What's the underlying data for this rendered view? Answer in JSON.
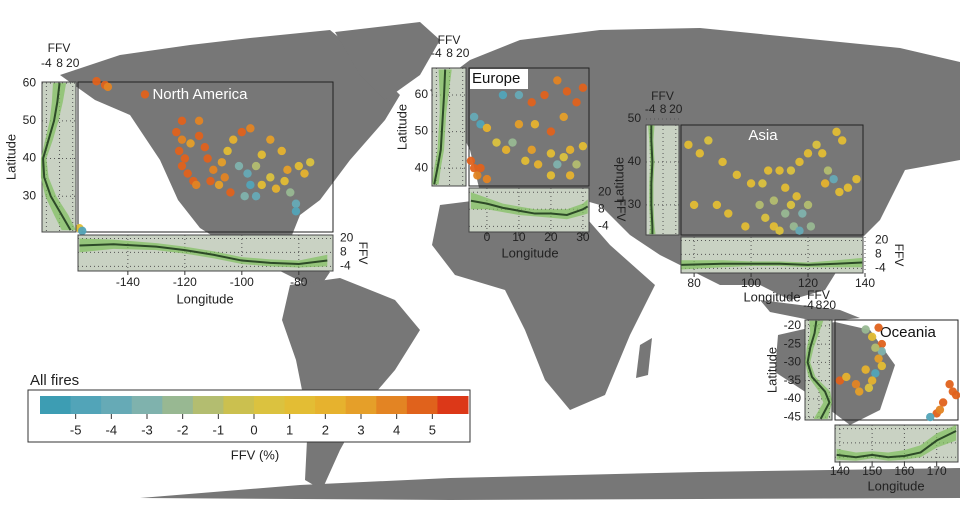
{
  "legend": {
    "title": "All fires",
    "label": "FFV (%)",
    "ticks": [
      -5,
      -4,
      -3,
      -2,
      -1,
      0,
      1,
      2,
      3,
      4,
      5
    ],
    "range": [
      -6,
      6
    ],
    "colors": [
      "#3d9db3",
      "#52a4b8",
      "#66aab6",
      "#7fb2ad",
      "#98b892",
      "#b3bd70",
      "#cbc04f",
      "#dbc23f",
      "#e3bd34",
      "#e6b22e",
      "#e59f29",
      "#e38423",
      "#e0621c",
      "#dc3818"
    ]
  },
  "regions": [
    {
      "name": "North America",
      "xlabel": "Longitude",
      "ylabel": "Latitude",
      "xlim": [
        -157.5,
        -68
      ],
      "ylim": [
        20.5,
        60.3
      ],
      "xticks": [
        -140,
        -120,
        -100,
        -80
      ],
      "yticks": [
        30,
        40,
        50,
        60
      ],
      "ffv_label": "FFV",
      "ffv_lim": [
        -8,
        23
      ],
      "ffv_ticks": [
        -4,
        8,
        20
      ],
      "points": {
        "lon": [
          -151,
          -148,
          -147,
          -134,
          -123,
          -121,
          -122,
          -120,
          -121,
          -119,
          -117,
          -116,
          -118,
          -115,
          -113,
          -112,
          -110,
          -111,
          -108,
          -106,
          -107,
          -105,
          -103,
          -100,
          -97,
          -101,
          -98,
          -97,
          -99,
          -95,
          -93,
          -90,
          -88,
          -85,
          -83,
          -81,
          -81,
          -84,
          -80,
          -78,
          -76,
          -90,
          -86,
          -93,
          -95,
          -104,
          -121,
          -115,
          -157,
          -156
        ],
        "lat": [
          60.5,
          59.5,
          59,
          57,
          47,
          45,
          42,
          40,
          38,
          36,
          34,
          33,
          44,
          46,
          43,
          40,
          37,
          34,
          33,
          35,
          39,
          42,
          45,
          47,
          48,
          38,
          36,
          33,
          30,
          30,
          33,
          35,
          32,
          34,
          31,
          28,
          26,
          37,
          38,
          36,
          39,
          45,
          42,
          41,
          38,
          31,
          50,
          50,
          21.5,
          20.8
        ],
        "ffv": [
          5,
          5,
          4,
          5,
          5,
          4,
          5,
          5,
          5,
          5,
          5,
          4,
          3,
          5,
          5,
          5,
          4,
          5,
          3,
          4,
          3,
          1,
          2,
          5,
          4,
          -3,
          -4,
          -5,
          -3,
          -4,
          1,
          0,
          2,
          1,
          -2,
          -4,
          -5,
          3,
          1,
          2,
          0,
          3,
          2,
          1,
          -1,
          5,
          5,
          4,
          1,
          -5
        ]
      },
      "lat_profile": {
        "lat": [
          60,
          55,
          50,
          45,
          40,
          35,
          30,
          25,
          21
        ],
        "ffv": [
          8,
          6,
          3,
          -2,
          -7,
          -6,
          0,
          10,
          18
        ],
        "ffv_low": [
          2,
          1,
          -1,
          -5,
          -9,
          -9,
          -5,
          3,
          10
        ],
        "ffv_high": [
          14,
          11,
          7,
          2,
          -4,
          -2,
          5,
          16,
          23
        ]
      },
      "lon_profile": {
        "lon": [
          -157,
          -145,
          -130,
          -120,
          -110,
          -100,
          -90,
          -80,
          -70
        ],
        "ffv": [
          14,
          15,
          13,
          10,
          6,
          1,
          -1,
          -2,
          1
        ],
        "ffv_low": [
          8,
          11,
          10,
          7,
          3,
          -2,
          -4,
          -5,
          -4
        ],
        "ffv_high": [
          20,
          19,
          16,
          13,
          9,
          4,
          2,
          1,
          6
        ]
      }
    },
    {
      "name": "Europe",
      "xlabel": "Longitude",
      "ylabel": "Latitude",
      "xlim": [
        -5.6,
        31.9
      ],
      "ylim": [
        35.1,
        67.4
      ],
      "xticks": [
        0,
        10,
        20,
        30
      ],
      "yticks": [
        40,
        50,
        60
      ],
      "ffv_label": "FFV",
      "ffv_lim": [
        -8,
        23
      ],
      "ffv_ticks": [
        -4,
        8,
        20
      ],
      "points": {
        "lon": [
          -5,
          -4,
          -3,
          -2,
          0,
          -2,
          -4,
          0,
          3,
          6,
          8,
          12,
          14,
          16,
          20,
          22,
          24,
          26,
          28,
          30,
          10,
          15,
          20,
          24,
          14,
          18,
          25,
          28,
          30,
          22,
          10,
          5,
          20,
          26
        ],
        "lat": [
          42,
          40,
          38,
          40,
          37,
          52,
          54,
          51,
          47,
          45,
          47,
          42,
          45,
          41,
          44,
          41,
          43,
          45,
          41,
          46,
          52,
          52,
          50,
          54,
          58,
          60,
          61,
          58,
          62,
          64,
          60,
          60,
          38,
          38
        ],
        "ffv": [
          5,
          5,
          4,
          5,
          4,
          -5,
          -4,
          2,
          0,
          2,
          -2,
          1,
          3,
          2,
          1,
          -3,
          0,
          2,
          -1,
          1,
          3,
          2,
          5,
          3,
          5,
          5,
          5,
          5,
          5,
          4,
          -4,
          -5,
          1,
          2
        ]
      },
      "lat_profile": {
        "lat": [
          67,
          60,
          55,
          50,
          45,
          40,
          35.5
        ],
        "ffv": [
          4,
          3,
          2,
          1,
          0,
          -3,
          -6
        ],
        "ffv_low": [
          -2,
          -1,
          -1,
          -2,
          -3,
          -6,
          -8
        ],
        "ffv_high": [
          10,
          7,
          5,
          4,
          3,
          0,
          -2
        ]
      },
      "lon_profile": {
        "lon": [
          -5,
          0,
          5,
          10,
          15,
          20,
          25,
          30,
          31.5
        ],
        "ffv": [
          14,
          12,
          9,
          7,
          5,
          5,
          4,
          8,
          10
        ],
        "ffv_low": [
          8,
          8,
          6,
          4,
          3,
          2,
          1,
          4,
          5
        ],
        "ffv_high": [
          20,
          16,
          12,
          10,
          8,
          8,
          8,
          12,
          15
        ]
      }
    },
    {
      "name": "Asia",
      "xlabel": "Longitude",
      "ylabel": "Latitude",
      "xlim": [
        75.4,
        139.3
      ],
      "ylim": [
        23,
        48.6
      ],
      "xticks": [
        80,
        100,
        120,
        140
      ],
      "yticks": [
        30,
        40,
        50
      ],
      "ffv_label": "FFV",
      "ffv_lim": [
        -8,
        23
      ],
      "ffv_ticks": [
        -4,
        8,
        20
      ],
      "points": {
        "lon": [
          78,
          82,
          85,
          90,
          95,
          100,
          103,
          105,
          108,
          110,
          112,
          114,
          116,
          118,
          120,
          115,
          117,
          112,
          110,
          106,
          114,
          117,
          120,
          123,
          125,
          127,
          129,
          126,
          131,
          134,
          137,
          132,
          130,
          88,
          92,
          98,
          80,
          104,
          108,
          121
        ],
        "lat": [
          44,
          42,
          45,
          40,
          37,
          35,
          30,
          27,
          25,
          24,
          28,
          30,
          32,
          28,
          30,
          25,
          24,
          34,
          38,
          38,
          38,
          40,
          42,
          44,
          42,
          38,
          36,
          35,
          33,
          34,
          36,
          45,
          47,
          30,
          28,
          25,
          30,
          35,
          31,
          25
        ],
        "ffv": [
          1,
          1,
          0,
          1,
          1,
          1,
          -1,
          0,
          1,
          0,
          -2,
          0,
          1,
          -3,
          -1,
          -2,
          -4,
          1,
          1,
          1,
          0,
          1,
          1,
          0,
          1,
          -1,
          -4,
          2,
          1,
          1,
          1,
          1,
          1,
          1,
          1,
          1,
          1,
          0,
          -1,
          -2
        ]
      },
      "lat_profile": {
        "lat": [
          48.5,
          45,
          40,
          35,
          30,
          25,
          23.2
        ],
        "ffv": [
          -3,
          -3,
          -2,
          -3,
          -3,
          -2,
          -2
        ],
        "ffv_low": [
          -6,
          -5,
          -4,
          -5,
          -5,
          -4,
          -5
        ],
        "ffv_high": [
          0,
          -1,
          0,
          -1,
          -1,
          0,
          1
        ]
      },
      "lon_profile": {
        "lon": [
          75.5,
          90,
          100,
          110,
          120,
          130,
          139
        ],
        "ffv": [
          -1,
          0,
          0,
          0,
          -1,
          0,
          1
        ],
        "ffv_low": [
          -5,
          -3,
          -2,
          -2,
          -3,
          -3,
          -3
        ],
        "ffv_high": [
          3,
          3,
          2,
          2,
          1,
          3,
          5
        ]
      }
    },
    {
      "name": "Oceania",
      "xlabel": "Longitude",
      "ylabel": "Latitude",
      "xlim": [
        138.5,
        176.6
      ],
      "ylim": [
        -45.8,
        -18.4
      ],
      "xticks": [
        140,
        150,
        160,
        170
      ],
      "yticks": [
        -20,
        -25,
        -30,
        -35,
        -40,
        -45
      ],
      "ffv_label": "FFV",
      "ffv_lim": [
        -8,
        23
      ],
      "ffv_ticks": [
        -4,
        8,
        20
      ],
      "points": {
        "lon": [
          153,
          153,
          152,
          153,
          151,
          150,
          149,
          146,
          145,
          140,
          142,
          150,
          148,
          151,
          148,
          174,
          175,
          176,
          172,
          170,
          168,
          171,
          152
        ],
        "lat": [
          -25,
          -27,
          -29,
          -31,
          -33,
          -35,
          -37,
          -38,
          -36,
          -35,
          -34,
          -23,
          -21,
          -26,
          -32,
          -36,
          -38,
          -39,
          -41,
          -44,
          -45,
          -43,
          -20.5
        ],
        "ffv": [
          5,
          -3,
          3,
          1,
          -5,
          2,
          0,
          3,
          4,
          5,
          2,
          1,
          -2,
          -1,
          2,
          5,
          5,
          5,
          5,
          5,
          -5,
          4,
          5
        ]
      },
      "lat_profile": {
        "lat": [
          -18.6,
          -22,
          -26,
          -30,
          -34,
          -38,
          -41,
          -45.5
        ],
        "ffv": [
          5,
          3,
          -2,
          -5,
          0,
          15,
          20,
          10
        ],
        "ffv_low": [
          -3,
          -2,
          -6,
          -8,
          -4,
          8,
          13,
          2
        ],
        "ffv_high": [
          13,
          8,
          2,
          -2,
          4,
          21,
          23,
          18
        ]
      },
      "lon_profile": {
        "lon": [
          139,
          145,
          150,
          155,
          160,
          165,
          170,
          176
        ],
        "ffv": [
          -2,
          -4,
          -2,
          -4,
          -3,
          0,
          10,
          18
        ],
        "ffv_low": [
          -6,
          -7,
          -5,
          -7,
          -6,
          -4,
          4,
          10
        ],
        "ffv_high": [
          3,
          0,
          1,
          0,
          2,
          6,
          16,
          23
        ]
      }
    }
  ]
}
